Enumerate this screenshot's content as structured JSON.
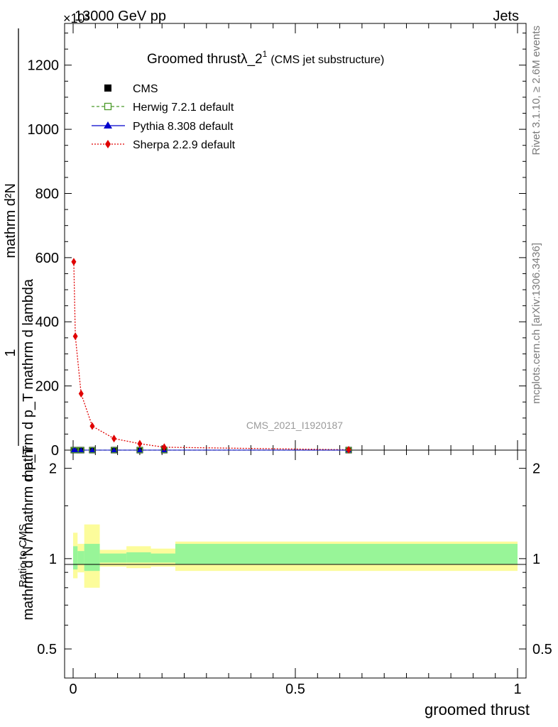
{
  "header": {
    "left": "13000 GeV pp",
    "right": "Jets",
    "exponent": "×10³"
  },
  "side_text": {
    "rivet": "Rivet 3.1.10, ≥ 2.6M events",
    "mcplots": "mcplots.cern.ch [arXiv:1306.3436]"
  },
  "watermark": "CMS_2021_I1920187",
  "title": {
    "main": "Groomed thrustλ_2",
    "sup": "1",
    "sub": "(CMS jet substructure)"
  },
  "xlabel": "groomed thrust",
  "ylabel_ratio": "Ratio to CMS",
  "ylabel_main": {
    "lead": "1",
    "numerator": "mathrm d²N",
    "line1": "mathrm d p_T mathrm d lambda",
    "denominator": "mathrm d N / mathrm d p_T"
  },
  "legend": [
    {
      "name": "CMS",
      "color": "#000000",
      "marker": "square-filled",
      "line": "none"
    },
    {
      "name": "Herwig 7.2.1 default",
      "color": "#4c9a2a",
      "marker": "square-open",
      "line": "dashed"
    },
    {
      "name": "Pythia 8.308 default",
      "color": "#0000cc",
      "marker": "triangle",
      "line": "solid"
    },
    {
      "name": "Sherpa 2.2.9 default",
      "color": "#e00000",
      "marker": "diamond",
      "line": "dotted"
    }
  ],
  "chart_data": {
    "type": "line",
    "xlim": [
      0,
      1
    ],
    "main": {
      "ylim": [
        0,
        1330
      ],
      "yticks": [
        0,
        200,
        400,
        600,
        800,
        1000,
        1200
      ],
      "ytick_labels": [
        "0",
        "200",
        "400",
        "600",
        "800",
        "1000",
        "1200"
      ],
      "scale_label": "×10³"
    },
    "ratio": {
      "ylim": [
        0.4,
        2.3
      ],
      "yticks": [
        0.5,
        1,
        2
      ],
      "ytick_labels": [
        "0.5",
        "1",
        "2"
      ]
    },
    "xticks": [
      0,
      0.5,
      1
    ],
    "xtick_labels": [
      "0",
      "0.5",
      "1"
    ],
    "series": [
      {
        "name": "CMS",
        "x": [
          0.0015,
          0.005,
          0.018,
          0.043,
          0.092,
          0.15,
          0.205,
          0.62
        ],
        "y": [
          0,
          0,
          0,
          0,
          0,
          0,
          0,
          0
        ]
      },
      {
        "name": "Herwig 7.2.1 default",
        "x": [
          0.0015,
          0.005,
          0.018,
          0.043,
          0.092,
          0.15,
          0.205,
          0.62
        ],
        "y": [
          0,
          0,
          0,
          0,
          0,
          0,
          0,
          0
        ]
      },
      {
        "name": "Pythia 8.308 default",
        "x": [
          0.0015,
          0.005,
          0.018,
          0.043,
          0.092,
          0.15,
          0.205,
          0.62
        ],
        "y": [
          0,
          0,
          0,
          0,
          0,
          0,
          0,
          0
        ]
      },
      {
        "name": "Sherpa 2.2.9 default",
        "x": [
          0.0015,
          0.005,
          0.018,
          0.043,
          0.092,
          0.15,
          0.205,
          0.62
        ],
        "y": [
          587,
          355,
          176,
          75,
          36,
          20,
          9,
          1
        ]
      }
    ],
    "ratio_bands": [
      {
        "x0": 0.0,
        "x1": 0.01,
        "green": [
          0.92,
          1.1
        ],
        "yellow": [
          0.86,
          1.22
        ]
      },
      {
        "x0": 0.01,
        "x1": 0.025,
        "green": [
          0.96,
          1.06
        ],
        "yellow": [
          0.9,
          1.12
        ]
      },
      {
        "x0": 0.025,
        "x1": 0.06,
        "green": [
          0.91,
          1.12
        ],
        "yellow": [
          0.8,
          1.3
        ]
      },
      {
        "x0": 0.06,
        "x1": 0.12,
        "green": [
          0.97,
          1.04
        ],
        "yellow": [
          0.94,
          1.07
        ]
      },
      {
        "x0": 0.12,
        "x1": 0.175,
        "green": [
          0.97,
          1.05
        ],
        "yellow": [
          0.93,
          1.1
        ]
      },
      {
        "x0": 0.175,
        "x1": 0.23,
        "green": [
          0.97,
          1.04
        ],
        "yellow": [
          0.94,
          1.08
        ]
      },
      {
        "x0": 0.23,
        "x1": 1.0,
        "green": [
          0.96,
          1.12
        ],
        "yellow": [
          0.91,
          1.14
        ]
      }
    ]
  }
}
